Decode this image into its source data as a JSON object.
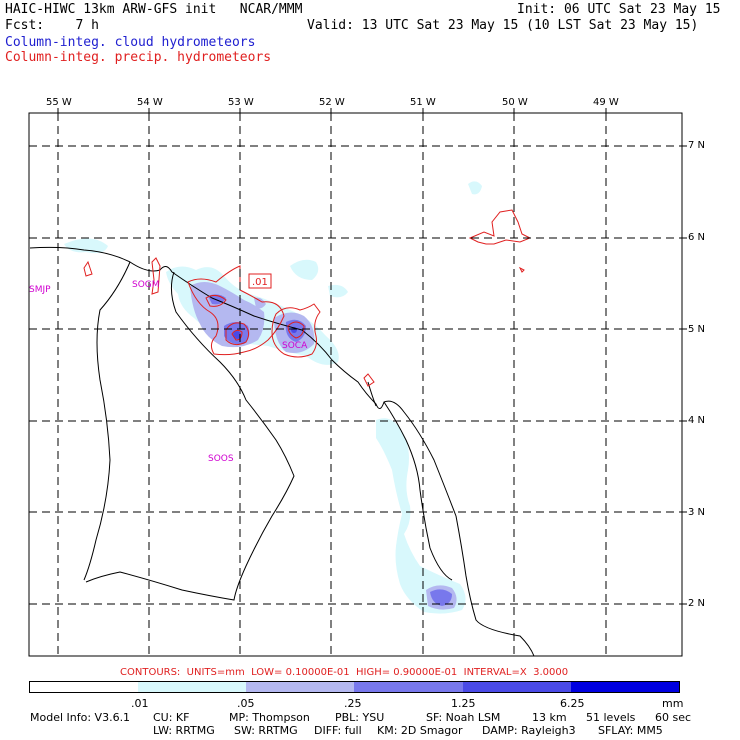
{
  "header": {
    "title": "HAIC-HIWC 13km ARW-GFS init   NCAR/MMM",
    "init": "Init: 06 UTC Sat 23 May 15",
    "fcst": "Fcst:    7 h",
    "valid": "Valid: 13 UTC Sat 23 May 15 (10 LST Sat 23 May 15)",
    "field1": "Column-integ. cloud hydrometeors",
    "field2": "Column-integ. precip. hydrometeors"
  },
  "colors": {
    "cloud_field": "#2020d0",
    "precip_field": "#e02020",
    "station": "#d000d0",
    "level1": "#ffffff",
    "level2": "#d8f8fc",
    "level3": "#b4b8f0",
    "level4": "#7878ec",
    "level5": "#4a4ae6",
    "level6": "#0000e0"
  },
  "map": {
    "lon_labels": [
      "55 W",
      "54 W",
      "53 W",
      "52 W",
      "51 W",
      "50 W",
      "49 W"
    ],
    "lat_labels": [
      "7 N",
      "6 N",
      "5 N",
      "4 N",
      "3 N",
      "2 N"
    ],
    "stations": [
      "SMJP",
      "SOGM",
      "SOCA",
      "SOOS"
    ],
    "contour_label": ".01"
  },
  "contours": {
    "text": "CONTOURS:  UNITS=mm  LOW= 0.10000E-01  HIGH= 0.90000E-01  INTERVAL=X  3.0000"
  },
  "legend": {
    "labels": [
      ".01",
      ".05",
      ".25",
      "1.25",
      "6.25"
    ],
    "units": "mm"
  },
  "footer": {
    "line1": {
      "model": "Model Info: V3.6.1",
      "cu": "CU: KF",
      "mp": "MP: Thompson",
      "pbl": "PBL: YSU",
      "sf": "SF: Noah LSM",
      "res": "13 km",
      "levels": "51 levels",
      "dt": "60 sec"
    },
    "line2": {
      "lw": "LW: RRTMG",
      "sw": "SW: RRTMG",
      "diff": "DIFF: full",
      "km": "KM: 2D Smagor",
      "damp": "DAMP: Rayleigh3",
      "sflay": "SFLAY: MM5"
    }
  }
}
